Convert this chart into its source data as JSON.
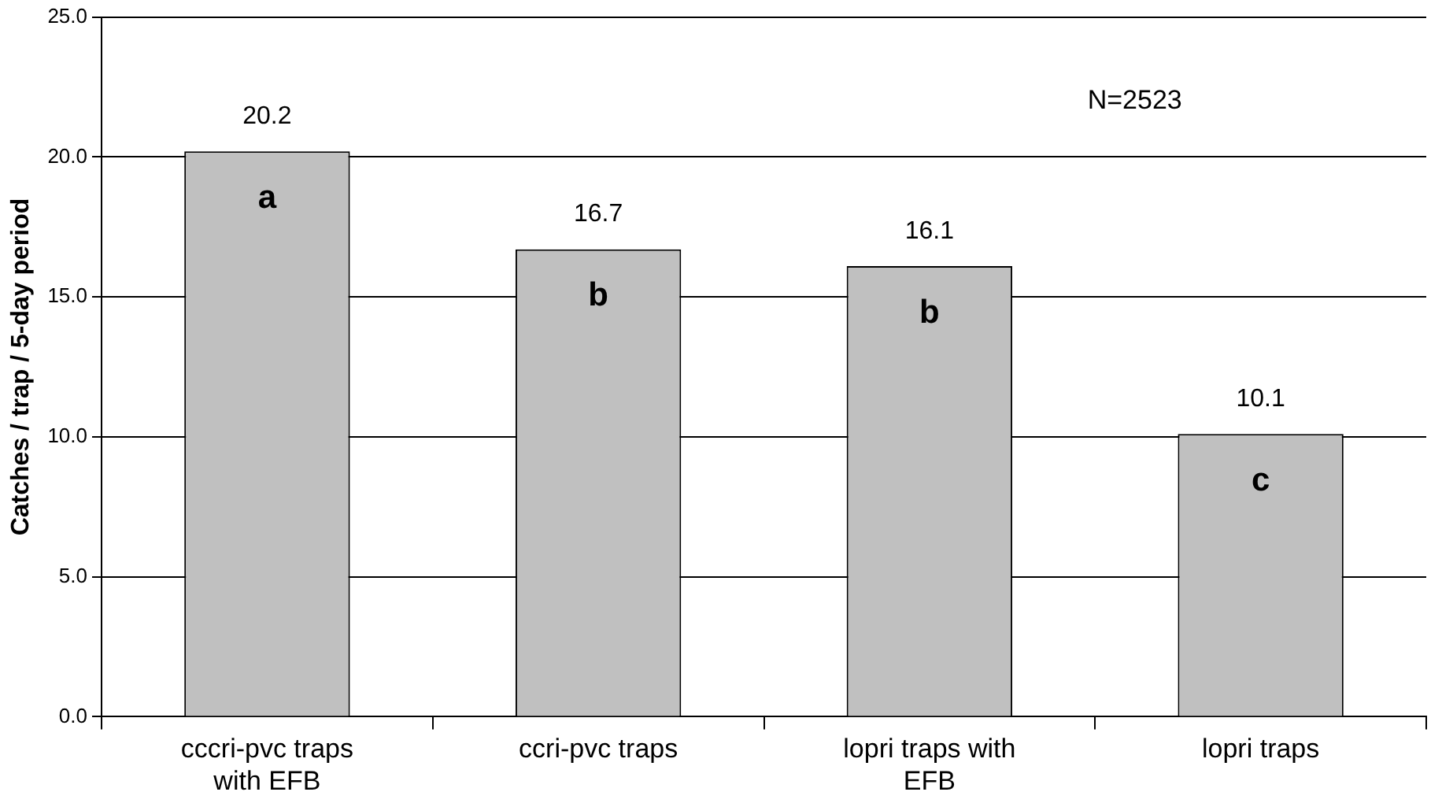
{
  "chart_data": {
    "type": "bar",
    "ylabel": "Catches / trap / 5-day period",
    "categories": [
      "cccri-pvc traps with EFB",
      "ccri-pvc traps",
      "lopri traps with EFB",
      "lopri traps"
    ],
    "values": [
      20.2,
      16.7,
      16.1,
      10.1
    ],
    "color": "#c0c0c0",
    "ylim": [
      0,
      25
    ],
    "yticks": [
      {
        "value": 0,
        "label": "0.0"
      },
      {
        "value": 5,
        "label": "5.0"
      },
      {
        "value": 10,
        "label": "10.0"
      },
      {
        "value": 15,
        "label": "15.0"
      },
      {
        "value": 20,
        "label": "20.0"
      },
      {
        "value": 25,
        "label": "25.0"
      }
    ],
    "grid": "y",
    "legend": false,
    "data_labels": true,
    "annotations": [
      "a",
      "b",
      "b",
      "c",
      "N=2523"
    ]
  }
}
